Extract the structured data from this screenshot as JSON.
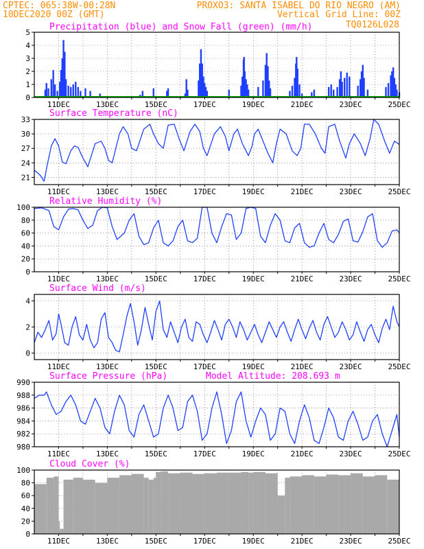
{
  "header": {
    "line1_left": "CPTEC: 065:38W-00:28N",
    "line1_right": "PROXO3: SANTA ISABEL DO RIO NEGRO (AM)",
    "line2_left": "10DEC2020 00Z (GMT)",
    "line2_right": "Vertical Grid Line: 00Z",
    "code": "TQ0126L028"
  },
  "colors": {
    "header": "#ff8c00",
    "title": "#ff00ff",
    "line": "#1f3fff",
    "bar": "#1f3fff",
    "snow": "#00aa00",
    "cloud": "#a9a9a9"
  },
  "x_axis": {
    "start_day": 10,
    "end_day": 25,
    "labels": [
      "11DEC",
      "13DEC",
      "15DEC",
      "17DEC",
      "19DEC",
      "21DEC",
      "23DEC",
      "25DEC"
    ]
  },
  "chart_data": [
    {
      "type": "bar",
      "title": "Precipitation (blue) and Snow Fall (green) (mm/h)",
      "ylim": [
        0,
        5
      ],
      "yticks": [
        0,
        1,
        2,
        3,
        4,
        5
      ],
      "series": [
        {
          "name": "Precipitation",
          "color": "#1f3fff",
          "points": [
            [
              10.45,
              0.6
            ],
            [
              10.5,
              1.1
            ],
            [
              10.58,
              0.7
            ],
            [
              10.7,
              1.4
            ],
            [
              10.78,
              2.1
            ],
            [
              10.85,
              1.0
            ],
            [
              10.95,
              0.5
            ],
            [
              11.05,
              1.2
            ],
            [
              11.1,
              2.1
            ],
            [
              11.15,
              3.0
            ],
            [
              11.2,
              4.4
            ],
            [
              11.25,
              3.5
            ],
            [
              11.3,
              1.4
            ],
            [
              11.4,
              0.9
            ],
            [
              11.5,
              0.8
            ],
            [
              11.6,
              1.0
            ],
            [
              11.7,
              1.2
            ],
            [
              11.8,
              0.8
            ],
            [
              11.9,
              0.5
            ],
            [
              12.1,
              0.7
            ],
            [
              12.3,
              0.5
            ],
            [
              12.7,
              0.3
            ],
            [
              14.35,
              0.2
            ],
            [
              14.45,
              0.5
            ],
            [
              14.9,
              0.7
            ],
            [
              15.45,
              0.5
            ],
            [
              15.5,
              0.7
            ],
            [
              16.2,
              0.3
            ],
            [
              16.25,
              1.4
            ],
            [
              16.3,
              0.6
            ],
            [
              16.75,
              1.3
            ],
            [
              16.8,
              2.6
            ],
            [
              16.85,
              3.7
            ],
            [
              16.9,
              2.6
            ],
            [
              16.95,
              1.6
            ],
            [
              17.0,
              1.1
            ],
            [
              17.05,
              0.8
            ],
            [
              17.1,
              0.5
            ],
            [
              18.0,
              0.6
            ],
            [
              18.5,
              0.9
            ],
            [
              18.55,
              1.6
            ],
            [
              18.6,
              2.9
            ],
            [
              18.62,
              3.1
            ],
            [
              18.65,
              2.0
            ],
            [
              18.7,
              1.4
            ],
            [
              18.75,
              1.0
            ],
            [
              18.8,
              0.6
            ],
            [
              19.2,
              0.8
            ],
            [
              19.4,
              1.3
            ],
            [
              19.5,
              2.5
            ],
            [
              19.55,
              3.4
            ],
            [
              19.6,
              2.4
            ],
            [
              19.65,
              1.3
            ],
            [
              19.7,
              0.7
            ],
            [
              20.5,
              0.5
            ],
            [
              20.6,
              0.9
            ],
            [
              20.7,
              1.5
            ],
            [
              20.75,
              2.6
            ],
            [
              20.78,
              3.1
            ],
            [
              20.82,
              2.2
            ],
            [
              20.9,
              1.0
            ],
            [
              21.0,
              0.3
            ],
            [
              21.4,
              0.4
            ],
            [
              21.5,
              0.6
            ],
            [
              22.1,
              0.8
            ],
            [
              22.2,
              1.0
            ],
            [
              22.3,
              0.6
            ],
            [
              22.45,
              0.8
            ],
            [
              22.55,
              1.4
            ],
            [
              22.6,
              2.0
            ],
            [
              22.65,
              1.2
            ],
            [
              22.75,
              1.5
            ],
            [
              22.85,
              1.9
            ],
            [
              22.95,
              1.6
            ],
            [
              23.3,
              0.9
            ],
            [
              23.4,
              1.4
            ],
            [
              23.45,
              2.0
            ],
            [
              23.5,
              2.5
            ],
            [
              23.55,
              1.5
            ],
            [
              23.7,
              0.6
            ],
            [
              24.45,
              0.8
            ],
            [
              24.55,
              1.1
            ],
            [
              24.65,
              1.7
            ],
            [
              24.7,
              2.0
            ],
            [
              24.75,
              2.3
            ],
            [
              24.8,
              1.5
            ],
            [
              24.85,
              1.0
            ],
            [
              24.9,
              0.6
            ],
            [
              25.0,
              0.4
            ]
          ]
        },
        {
          "name": "Snow Fall",
          "color": "#00aa00",
          "points": []
        }
      ]
    },
    {
      "type": "line",
      "title": "Surface Temperature (nC)",
      "ylim": [
        19.5,
        33
      ],
      "yticks": [
        21,
        24,
        27,
        30,
        33
      ],
      "x": [
        10.0,
        10.25,
        10.4,
        10.55,
        10.7,
        10.85,
        11.0,
        11.15,
        11.3,
        11.5,
        11.65,
        11.8,
        12.0,
        12.2,
        12.5,
        12.75,
        12.9,
        13.05,
        13.2,
        13.5,
        13.65,
        13.85,
        14.0,
        14.2,
        14.5,
        14.75,
        14.9,
        15.1,
        15.3,
        15.5,
        15.75,
        15.95,
        16.15,
        16.4,
        16.6,
        16.8,
        16.95,
        17.1,
        17.4,
        17.65,
        17.85,
        18.0,
        18.2,
        18.35,
        18.55,
        18.8,
        18.95,
        19.05,
        19.2,
        19.4,
        19.6,
        19.8,
        19.95,
        20.1,
        20.35,
        20.6,
        20.8,
        20.95,
        21.1,
        21.3,
        21.55,
        21.8,
        21.95,
        22.1,
        22.35,
        22.55,
        22.8,
        22.95,
        23.15,
        23.4,
        23.6,
        23.8,
        23.95,
        24.15,
        24.4,
        24.6,
        24.8,
        24.95,
        25.0
      ],
      "y": [
        22.5,
        21.4,
        20.2,
        24.0,
        27.5,
        29.0,
        27.5,
        24.2,
        23.8,
        26.5,
        27.5,
        27.2,
        25.0,
        23.2,
        28.0,
        28.5,
        27.0,
        24.5,
        24.0,
        30.0,
        31.5,
        30.0,
        27.0,
        26.5,
        31.0,
        32.0,
        30.0,
        28.0,
        27.0,
        31.8,
        32.0,
        29.0,
        26.5,
        30.5,
        32.0,
        30.5,
        27.0,
        25.5,
        30.0,
        31.5,
        29.5,
        26.5,
        30.0,
        31.0,
        28.0,
        25.5,
        27.5,
        30.0,
        31.0,
        28.5,
        26.0,
        24.0,
        28.0,
        31.0,
        30.0,
        26.5,
        25.5,
        27.0,
        32.0,
        32.0,
        30.0,
        27.0,
        26.0,
        31.5,
        32.0,
        28.5,
        25.0,
        28.0,
        30.0,
        28.0,
        25.5,
        29.0,
        33.0,
        32.0,
        28.5,
        26.0,
        28.5,
        28.0,
        27.8
      ]
    },
    {
      "type": "line",
      "title": "Relative Humidity (%)",
      "ylim": [
        0,
        100
      ],
      "yticks": [
        0,
        20,
        40,
        60,
        80,
        100
      ],
      "x": [
        10.0,
        10.3,
        10.6,
        10.8,
        11.0,
        11.2,
        11.4,
        11.6,
        11.8,
        12.0,
        12.2,
        12.4,
        12.6,
        12.8,
        13.0,
        13.2,
        13.4,
        13.7,
        13.9,
        14.1,
        14.3,
        14.5,
        14.7,
        14.9,
        15.1,
        15.3,
        15.5,
        15.7,
        15.9,
        16.1,
        16.3,
        16.5,
        16.7,
        16.9,
        17.1,
        17.3,
        17.5,
        17.7,
        17.9,
        18.1,
        18.3,
        18.5,
        18.7,
        18.9,
        19.1,
        19.3,
        19.5,
        19.7,
        19.9,
        20.1,
        20.3,
        20.5,
        20.7,
        20.9,
        21.1,
        21.3,
        21.5,
        21.7,
        21.9,
        22.1,
        22.3,
        22.5,
        22.7,
        22.9,
        23.1,
        23.3,
        23.5,
        23.7,
        23.9,
        24.1,
        24.3,
        24.5,
        24.7,
        24.9,
        25.0
      ],
      "y": [
        98,
        99,
        95,
        70,
        65,
        85,
        97,
        98,
        96,
        80,
        67,
        72,
        95,
        100,
        99,
        70,
        50,
        60,
        80,
        90,
        55,
        42,
        45,
        68,
        80,
        45,
        40,
        48,
        70,
        80,
        48,
        45,
        52,
        100,
        100,
        60,
        45,
        70,
        90,
        88,
        50,
        60,
        98,
        100,
        98,
        55,
        45,
        72,
        90,
        80,
        48,
        45,
        68,
        75,
        45,
        38,
        40,
        60,
        75,
        50,
        45,
        58,
        78,
        82,
        48,
        46,
        62,
        85,
        90,
        48,
        38,
        45,
        63,
        65,
        60
      ]
    },
    {
      "type": "line",
      "title": "Surface Wind (m/s)",
      "ylim": [
        -0.5,
        4.5
      ],
      "yticks": [
        0,
        2,
        4
      ],
      "x": [
        10.0,
        10.15,
        10.3,
        10.45,
        10.6,
        10.75,
        10.9,
        11.0,
        11.1,
        11.25,
        11.4,
        11.55,
        11.7,
        11.85,
        12.0,
        12.15,
        12.3,
        12.45,
        12.6,
        12.75,
        12.9,
        13.05,
        13.2,
        13.35,
        13.5,
        13.65,
        13.8,
        13.95,
        14.1,
        14.25,
        14.4,
        14.55,
        14.7,
        14.85,
        15.0,
        15.15,
        15.3,
        15.45,
        15.6,
        15.75,
        15.9,
        16.05,
        16.2,
        16.35,
        16.5,
        16.65,
        16.8,
        16.95,
        17.1,
        17.25,
        17.4,
        17.55,
        17.7,
        17.85,
        18.0,
        18.15,
        18.3,
        18.45,
        18.6,
        18.75,
        18.9,
        19.05,
        19.2,
        19.35,
        19.5,
        19.65,
        19.8,
        19.95,
        20.1,
        20.25,
        20.4,
        20.55,
        20.7,
        20.85,
        21.0,
        21.15,
        21.3,
        21.45,
        21.6,
        21.75,
        21.9,
        22.05,
        22.2,
        22.35,
        22.5,
        22.65,
        22.8,
        22.95,
        23.1,
        23.25,
        23.4,
        23.55,
        23.7,
        23.85,
        24.0,
        24.15,
        24.3,
        24.45,
        24.6,
        24.75,
        24.9,
        25.0
      ],
      "y": [
        0.8,
        1.6,
        1.2,
        1.8,
        2.5,
        1.0,
        1.5,
        3.0,
        2.2,
        0.8,
        0.6,
        2.0,
        2.8,
        1.4,
        1.0,
        2.2,
        1.0,
        0.4,
        0.8,
        2.6,
        3.1,
        1.2,
        0.8,
        0.2,
        0.1,
        1.4,
        2.8,
        3.8,
        2.4,
        0.6,
        1.8,
        3.5,
        2.2,
        1.0,
        3.2,
        4.0,
        1.8,
        1.2,
        2.4,
        1.6,
        0.8,
        2.0,
        2.6,
        1.2,
        0.9,
        2.4,
        2.2,
        1.4,
        0.8,
        1.6,
        2.5,
        1.8,
        1.0,
        2.2,
        2.6,
        2.0,
        1.2,
        2.4,
        1.8,
        1.0,
        1.6,
        2.2,
        1.4,
        0.8,
        1.6,
        2.4,
        1.8,
        1.2,
        2.0,
        2.4,
        1.6,
        0.9,
        1.8,
        2.6,
        1.8,
        1.1,
        1.9,
        2.5,
        1.6,
        1.0,
        2.2,
        2.8,
        2.0,
        1.2,
        1.6,
        2.4,
        1.8,
        1.0,
        1.4,
        2.4,
        1.6,
        0.9,
        1.8,
        2.2,
        1.4,
        0.8,
        1.9,
        2.6,
        1.8,
        3.6,
        2.4,
        2.0
      ]
    },
    {
      "type": "line",
      "title": "Surface Pressure (hPa)",
      "annotation": "Model Altitude: 208.693 m",
      "ylim": [
        980,
        990
      ],
      "yticks": [
        980,
        982,
        984,
        986,
        988,
        990
      ],
      "x": [
        10.0,
        10.2,
        10.4,
        10.5,
        10.7,
        10.9,
        11.1,
        11.3,
        11.5,
        11.7,
        11.9,
        12.1,
        12.3,
        12.5,
        12.7,
        12.9,
        13.1,
        13.3,
        13.5,
        13.7,
        13.9,
        14.1,
        14.3,
        14.5,
        14.7,
        14.9,
        15.1,
        15.3,
        15.5,
        15.7,
        15.9,
        16.1,
        16.3,
        16.5,
        16.7,
        16.9,
        17.1,
        17.3,
        17.5,
        17.7,
        17.9,
        18.1,
        18.3,
        18.5,
        18.7,
        18.9,
        19.1,
        19.3,
        19.5,
        19.7,
        19.9,
        20.1,
        20.3,
        20.5,
        20.7,
        20.9,
        21.1,
        21.3,
        21.5,
        21.7,
        21.9,
        22.1,
        22.3,
        22.5,
        22.7,
        22.9,
        23.1,
        23.3,
        23.5,
        23.7,
        23.9,
        24.1,
        24.3,
        24.5,
        24.7,
        24.9,
        25.0
      ],
      "y": [
        987.5,
        988.0,
        988.0,
        988.5,
        986.5,
        985.0,
        985.5,
        987.0,
        988.0,
        986.5,
        984.0,
        983.5,
        985.5,
        987.5,
        986.0,
        983.0,
        982.0,
        985.5,
        988.0,
        986.5,
        982.5,
        981.5,
        985.0,
        986.5,
        984.0,
        981.5,
        982.0,
        986.0,
        988.0,
        986.0,
        982.5,
        983.0,
        987.0,
        988.0,
        985.5,
        981.0,
        982.0,
        986.0,
        988.5,
        985.0,
        980.5,
        982.5,
        987.0,
        988.5,
        984.0,
        981.5,
        984.0,
        986.0,
        985.0,
        981.0,
        982.0,
        986.0,
        985.5,
        982.0,
        980.5,
        984.0,
        986.5,
        984.5,
        981.0,
        980.5,
        983.0,
        986.0,
        984.5,
        981.5,
        981.0,
        984.0,
        985.5,
        983.5,
        981.0,
        981.5,
        984.0,
        985.0,
        982.0,
        980.0,
        982.5,
        985.0,
        981.5
      ]
    },
    {
      "type": "bar",
      "title": "Cloud Cover (%)",
      "color": "#a9a9a9",
      "ylim": [
        0,
        100
      ],
      "yticks": [
        0,
        20,
        40,
        60,
        80,
        100
      ],
      "x": [
        10.0,
        10.5,
        10.8,
        11.0,
        11.05,
        11.2,
        11.6,
        12.0,
        12.5,
        13.0,
        13.5,
        14.0,
        14.5,
        14.7,
        14.9,
        15.0,
        15.2,
        15.5,
        16.0,
        16.5,
        17.0,
        17.5,
        18.0,
        18.5,
        18.8,
        19.0,
        19.5,
        20.0,
        20.3,
        20.5,
        21.0,
        21.5,
        22.0,
        22.5,
        23.0,
        23.5,
        24.0,
        24.5,
        25.0
      ],
      "y": [
        78,
        88,
        90,
        20,
        8,
        85,
        88,
        85,
        80,
        88,
        92,
        94,
        88,
        85,
        88,
        97,
        98,
        95,
        96,
        94,
        95,
        96,
        96,
        97,
        96,
        97,
        95,
        60,
        88,
        90,
        92,
        90,
        93,
        92,
        95,
        90,
        92,
        85,
        90
      ]
    }
  ]
}
